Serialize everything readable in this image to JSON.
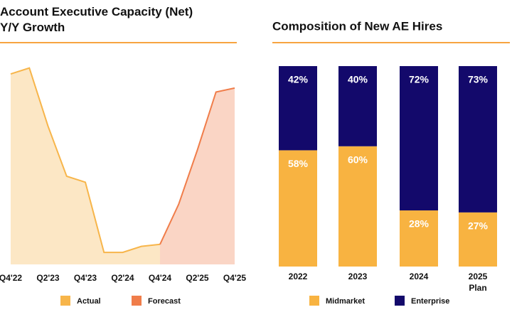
{
  "chart_data": [
    {
      "type": "area",
      "title": "Account Executive Capacity (Net) Y/Y Growth",
      "categories": [
        "Q4'22",
        null,
        "Q2'23",
        null,
        "Q4'23",
        null,
        "Q2'24",
        null,
        "Q4'24",
        null,
        "Q2'25",
        null,
        "Q4'25"
      ],
      "series": [
        {
          "name": "Actual",
          "color": "#f7b54a",
          "values": [
            95,
            98,
            69,
            44,
            41,
            6,
            6,
            9,
            10,
            null,
            null,
            null,
            null
          ]
        },
        {
          "name": "Forecast",
          "color": "#f07d4a",
          "values": [
            null,
            null,
            null,
            null,
            null,
            null,
            null,
            null,
            10,
            30,
            57,
            86,
            88
          ]
        }
      ],
      "ylim": [
        0,
        100
      ]
    },
    {
      "type": "stacked_bar",
      "title": "Composition of New AE Hires",
      "categories": [
        "2022",
        "2023",
        "2024",
        "2025 Plan"
      ],
      "series": [
        {
          "name": "Midmarket",
          "color": "#f8b341",
          "values": [
            58,
            60,
            28,
            27
          ],
          "value_labels": [
            "58%",
            "60%",
            "28%",
            "27%"
          ]
        },
        {
          "name": "Enterprise",
          "color": "#13096b",
          "values": [
            42,
            40,
            72,
            73
          ],
          "value_labels": [
            "42%",
            "40%",
            "72%",
            "73%"
          ]
        }
      ],
      "ylim": [
        0,
        100
      ]
    }
  ]
}
